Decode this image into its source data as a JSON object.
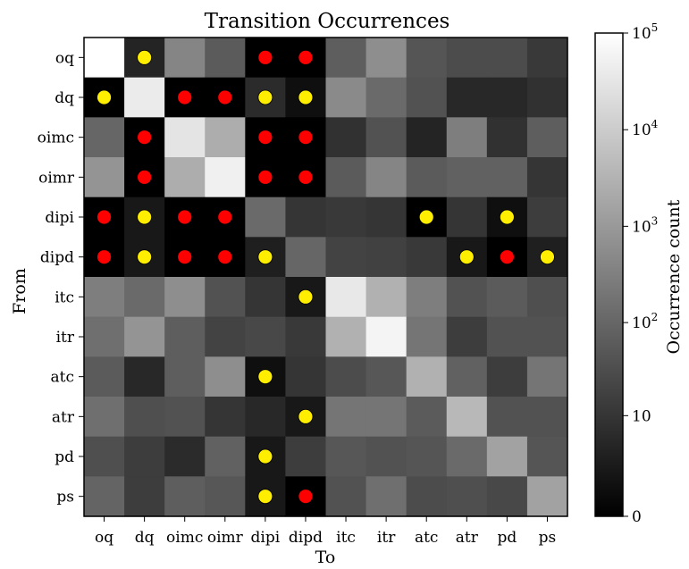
{
  "chart_data": {
    "type": "heatmap",
    "title": "Transition Occurrences",
    "xlabel": "To",
    "ylabel": "From",
    "categories": [
      "oq",
      "dq",
      "oimc",
      "oimr",
      "dipi",
      "dipd",
      "itc",
      "itr",
      "atc",
      "atr",
      "pd",
      "ps"
    ],
    "scale": "log",
    "colormap": "gray",
    "colorbar": {
      "label": "Occurrence count",
      "ticks": [
        {
          "value": 0,
          "base": "0",
          "exp": ""
        },
        {
          "value": 10,
          "base": "10",
          "exp": ""
        },
        {
          "value": 100,
          "base": "10",
          "exp": "2"
        },
        {
          "value": 1000,
          "base": "10",
          "exp": "3"
        },
        {
          "value": 10000,
          "base": "10",
          "exp": "4"
        },
        {
          "value": 100000,
          "base": "10",
          "exp": "5"
        }
      ]
    },
    "values": [
      [
        130000,
        4,
        400,
        60,
        0,
        0,
        70,
        600,
        45,
        30,
        30,
        12
      ],
      [
        0,
        40000,
        0,
        0,
        6,
        1,
        500,
        120,
        40,
        5,
        5,
        8
      ],
      [
        100,
        0,
        30000,
        2500,
        0,
        0,
        8,
        40,
        4,
        300,
        8,
        70
      ],
      [
        800,
        0,
        2500,
        50000,
        0,
        0,
        60,
        400,
        60,
        80,
        80,
        10
      ],
      [
        0,
        2,
        0,
        0,
        120,
        10,
        12,
        10,
        0,
        10,
        1,
        15
      ],
      [
        0,
        2,
        0,
        0,
        3,
        100,
        20,
        18,
        12,
        2,
        0,
        3
      ],
      [
        300,
        120,
        600,
        40,
        10,
        2,
        35000,
        3000,
        300,
        40,
        60,
        35
      ],
      [
        150,
        800,
        70,
        20,
        25,
        12,
        3000,
        60000,
        200,
        15,
        40,
        40
      ],
      [
        60,
        5,
        70,
        600,
        1,
        10,
        30,
        50,
        3000,
        80,
        15,
        200
      ],
      [
        150,
        35,
        40,
        10,
        5,
        2,
        200,
        200,
        60,
        4000,
        40,
        40
      ],
      [
        35,
        15,
        6,
        80,
        2,
        15,
        50,
        40,
        45,
        120,
        1500,
        45
      ],
      [
        90,
        15,
        70,
        50,
        2,
        0,
        40,
        150,
        30,
        35,
        25,
        1500
      ]
    ],
    "markers": {
      "yellow": [
        [
          0,
          1
        ],
        [
          0,
          4
        ],
        [
          1,
          0
        ],
        [
          1,
          4
        ],
        [
          1,
          5
        ],
        [
          3,
          4
        ],
        [
          3,
          5
        ],
        [
          4,
          1
        ],
        [
          4,
          8
        ],
        [
          4,
          10
        ],
        [
          5,
          1
        ],
        [
          5,
          4
        ],
        [
          5,
          9
        ],
        [
          5,
          11
        ],
        [
          6,
          5
        ],
        [
          8,
          4
        ],
        [
          9,
          5
        ],
        [
          10,
          4
        ],
        [
          11,
          4
        ]
      ],
      "red": [
        [
          0,
          4
        ],
        [
          0,
          5
        ],
        [
          1,
          2
        ],
        [
          1,
          3
        ],
        [
          2,
          1
        ],
        [
          2,
          4
        ],
        [
          2,
          5
        ],
        [
          3,
          1
        ],
        [
          3,
          4
        ],
        [
          3,
          5
        ],
        [
          4,
          0
        ],
        [
          4,
          2
        ],
        [
          4,
          3
        ],
        [
          5,
          0
        ],
        [
          5,
          2
        ],
        [
          5,
          3
        ],
        [
          5,
          10
        ],
        [
          11,
          5
        ]
      ]
    }
  }
}
